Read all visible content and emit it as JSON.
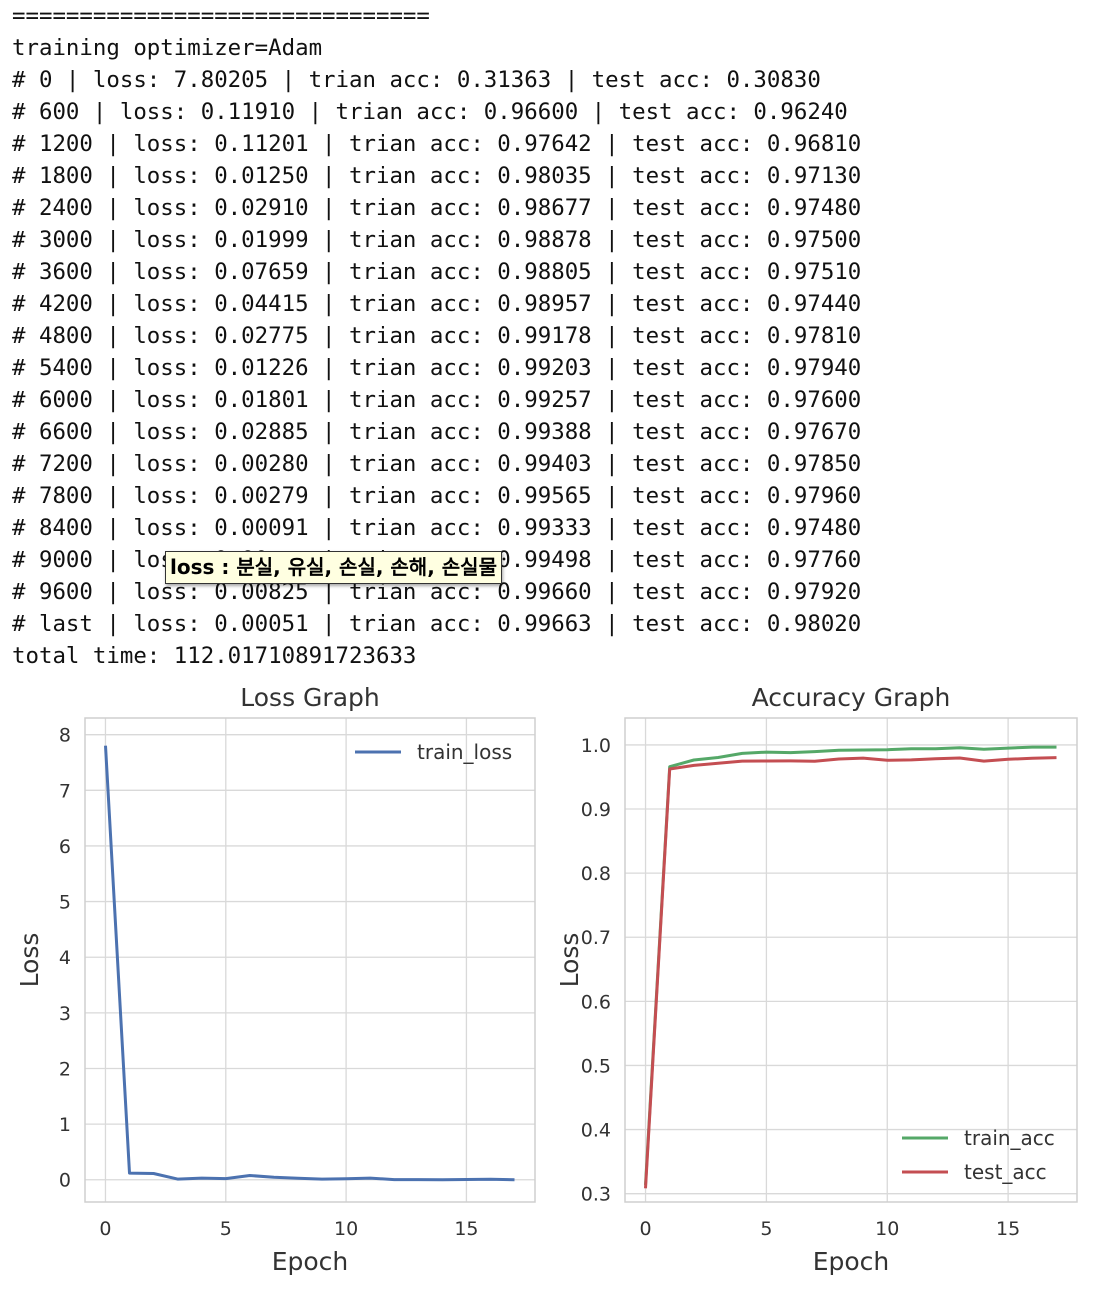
{
  "log": {
    "separator": "===============================",
    "header": "training optimizer=Adam",
    "lines": [
      "# 0 | loss: 7.80205 | trian acc: 0.31363 | test acc: 0.30830",
      "# 600 | loss: 0.11910 | trian acc: 0.96600 | test acc: 0.96240",
      "# 1200 | loss: 0.11201 | trian acc: 0.97642 | test acc: 0.96810",
      "# 1800 | loss: 0.01250 | trian acc: 0.98035 | test acc: 0.97130",
      "# 2400 | loss: 0.02910 | trian acc: 0.98677 | test acc: 0.97480",
      "# 3000 | loss: 0.01999 | trian acc: 0.98878 | test acc: 0.97500",
      "# 3600 | loss: 0.07659 | trian acc: 0.98805 | test acc: 0.97510",
      "# 4200 | loss: 0.04415 | trian acc: 0.98957 | test acc: 0.97440",
      "# 4800 | loss: 0.02775 | trian acc: 0.99178 | test acc: 0.97810",
      "# 5400 | loss: 0.01226 | trian acc: 0.99203 | test acc: 0.97940",
      "# 6000 | loss: 0.01801 | trian acc: 0.99257 | test acc: 0.97600",
      "# 6600 | loss: 0.02885 | trian acc: 0.99388 | test acc: 0.97670",
      "# 7200 | loss: 0.00280 | trian acc: 0.99403 | test acc: 0.97850",
      "# 7800 | loss: 0.00279 | trian acc: 0.99565 | test acc: 0.97960",
      "# 8400 | loss: 0.00091 | trian acc: 0.99333 | test acc: 0.97480",
      "# 9000 | loss: 0.00___ | trian acc: 0.99498 | test acc: 0.97760",
      "# 9600 | loss: 0.00825 | trian acc: 0.99660 | test acc: 0.97920",
      "# last | loss: 0.00051 | trian acc: 0.99663 | test acc: 0.98020"
    ],
    "total_time": "total time: 112.01710891723633"
  },
  "tooltip": {
    "text": "loss : 분실, 유실, 손실, 손해, 손실물"
  },
  "chart_data": [
    {
      "type": "line",
      "title": "Loss Graph",
      "xlabel": "Epoch",
      "ylabel": "Loss",
      "xlim": [
        -0.85,
        17.85
      ],
      "ylim": [
        -0.4,
        8.3
      ],
      "xticks": [
        0,
        5,
        10,
        15
      ],
      "yticks": [
        0,
        1,
        2,
        3,
        4,
        5,
        6,
        7,
        8
      ],
      "grid": true,
      "legend": "top-right",
      "x": [
        0,
        1,
        2,
        3,
        4,
        5,
        6,
        7,
        8,
        9,
        10,
        11,
        12,
        13,
        14,
        15,
        16,
        17
      ],
      "series": [
        {
          "name": "train_loss",
          "color": "#4c72b0",
          "values": [
            7.80205,
            0.1191,
            0.11201,
            0.0125,
            0.0291,
            0.01999,
            0.07659,
            0.04415,
            0.02775,
            0.01226,
            0.01801,
            0.02885,
            0.0028,
            0.00279,
            0.00091,
            0.005,
            0.00825,
            0.00051
          ]
        }
      ]
    },
    {
      "type": "line",
      "title": "Accuracy Graph",
      "xlabel": "Epoch",
      "ylabel": "Loss",
      "xlim": [
        -0.85,
        17.85
      ],
      "ylim": [
        0.287,
        1.042
      ],
      "xticks": [
        0,
        5,
        10,
        15
      ],
      "yticks": [
        0.3,
        0.4,
        0.5,
        0.6,
        0.7,
        0.8,
        0.9,
        1.0
      ],
      "ytick_labels": [
        "0.3",
        "0.4",
        "0.5",
        "0.6",
        "0.7",
        "0.8",
        "0.9",
        "1.0"
      ],
      "grid": true,
      "legend": "bottom-right",
      "x": [
        0,
        1,
        2,
        3,
        4,
        5,
        6,
        7,
        8,
        9,
        10,
        11,
        12,
        13,
        14,
        15,
        16,
        17
      ],
      "series": [
        {
          "name": "train_acc",
          "color": "#55a868",
          "values": [
            0.31363,
            0.966,
            0.97642,
            0.98035,
            0.98677,
            0.98878,
            0.98805,
            0.98957,
            0.99178,
            0.99203,
            0.99257,
            0.99388,
            0.99403,
            0.99565,
            0.99333,
            0.99498,
            0.9966,
            0.99663
          ]
        },
        {
          "name": "test_acc",
          "color": "#c44e52",
          "values": [
            0.3083,
            0.9624,
            0.9681,
            0.9713,
            0.9748,
            0.975,
            0.9751,
            0.9744,
            0.9781,
            0.9794,
            0.976,
            0.9767,
            0.9785,
            0.9796,
            0.9748,
            0.9776,
            0.9792,
            0.9802
          ]
        }
      ]
    }
  ]
}
